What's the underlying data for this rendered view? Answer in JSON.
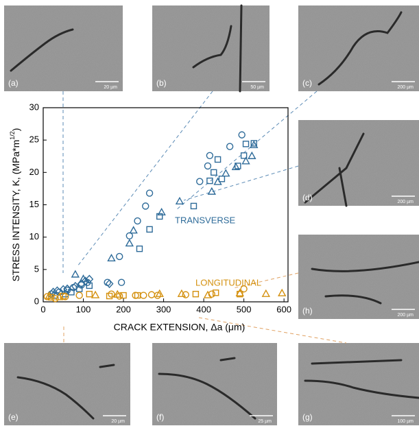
{
  "chart_data": {
    "type": "scatter",
    "xlabel": "CRACK EXTENSION, Δa (μm)",
    "ylabel": [
      "STRESS INTENSITY, K, (MPa*m",
      "1/2",
      ")"
    ],
    "annotations": [
      "TRANSVERSE",
      "LONGITUDINAL"
    ],
    "xlim": [
      0,
      610
    ],
    "ylim": [
      0,
      30
    ],
    "xticks": [
      0,
      100,
      200,
      300,
      400,
      500,
      600
    ],
    "yticks": [
      0,
      5,
      10,
      15,
      20,
      25,
      30
    ],
    "series": [
      {
        "color": "#2e6b99",
        "marker": "circle",
        "x": [
          20,
          40,
          60,
          75,
          95,
          110,
          160,
          190,
          195,
          215,
          235,
          255,
          265,
          390,
          410,
          415,
          465,
          495
        ],
        "values": [
          1.2,
          1.5,
          1.8,
          2.2,
          2.6,
          3,
          3,
          7,
          3,
          10.2,
          12.5,
          14.8,
          16.8,
          18.6,
          21,
          22.6,
          24,
          25.8
        ]
      },
      {
        "color": "#2e6b99",
        "marker": "square",
        "x": [
          30,
          55,
          70,
          90,
          115,
          240,
          265,
          290,
          375,
          415,
          425,
          435,
          445,
          485,
          500,
          505,
          525
        ],
        "values": [
          1,
          1.2,
          1.5,
          2,
          2.5,
          8.2,
          11.2,
          13.2,
          14.8,
          18.7,
          20,
          22,
          19,
          21,
          22.6,
          24.4,
          24.5
        ]
      },
      {
        "color": "#2e6b99",
        "marker": "triangle",
        "x": [
          80,
          100,
          170,
          215,
          225,
          295,
          340,
          420,
          435,
          455,
          480,
          505,
          520,
          525
        ],
        "values": [
          4.2,
          3.5,
          6.7,
          9,
          11,
          13.8,
          15.5,
          17,
          18.5,
          19.8,
          20.8,
          21.7,
          22.5,
          24.2
        ]
      },
      {
        "color": "#2e6b99",
        "marker": "diamond",
        "x": [
          25,
          35,
          50,
          60,
          80,
          95,
          105,
          115,
          165
        ],
        "values": [
          1.5,
          1.7,
          1.9,
          2,
          2.4,
          2.8,
          3.2,
          3.5,
          2.8
        ]
      },
      {
        "color": "#d4900e",
        "marker": "circle",
        "x": [
          10,
          30,
          55,
          90,
          170,
          190,
          230,
          250,
          270,
          285,
          355,
          420,
          500
        ],
        "values": [
          0.8,
          0.5,
          0.8,
          1,
          1.2,
          0.9,
          1,
          1,
          1.1,
          1,
          1.1,
          1.2,
          2
        ]
      },
      {
        "color": "#d4900e",
        "marker": "square",
        "x": [
          20,
          50,
          115,
          165,
          200,
          235,
          380,
          430,
          490
        ],
        "values": [
          0.7,
          0.9,
          1.2,
          0.9,
          1,
          1,
          1.2,
          1.4,
          1.2
        ]
      },
      {
        "color": "#d4900e",
        "marker": "triangle",
        "x": [
          15,
          40,
          130,
          185,
          290,
          345,
          410,
          490,
          555,
          595
        ],
        "values": [
          0.9,
          0.7,
          1,
          1.1,
          1.2,
          1.2,
          1,
          1.3,
          1.2,
          1.3
        ]
      }
    ]
  },
  "panels": [
    {
      "label": "(a)",
      "scale": "20 µm"
    },
    {
      "label": "(b)",
      "scale": "50 µm"
    },
    {
      "label": "(c)",
      "scale": "200 µm"
    },
    {
      "label": "(d)",
      "scale": "200 µm"
    },
    {
      "label": "(h)",
      "scale": "200 µm"
    },
    {
      "label": "(e)",
      "scale": "20 µm"
    },
    {
      "label": "(f)",
      "scale": "25 µm"
    },
    {
      "label": "(g)",
      "scale": "100 µm"
    }
  ]
}
